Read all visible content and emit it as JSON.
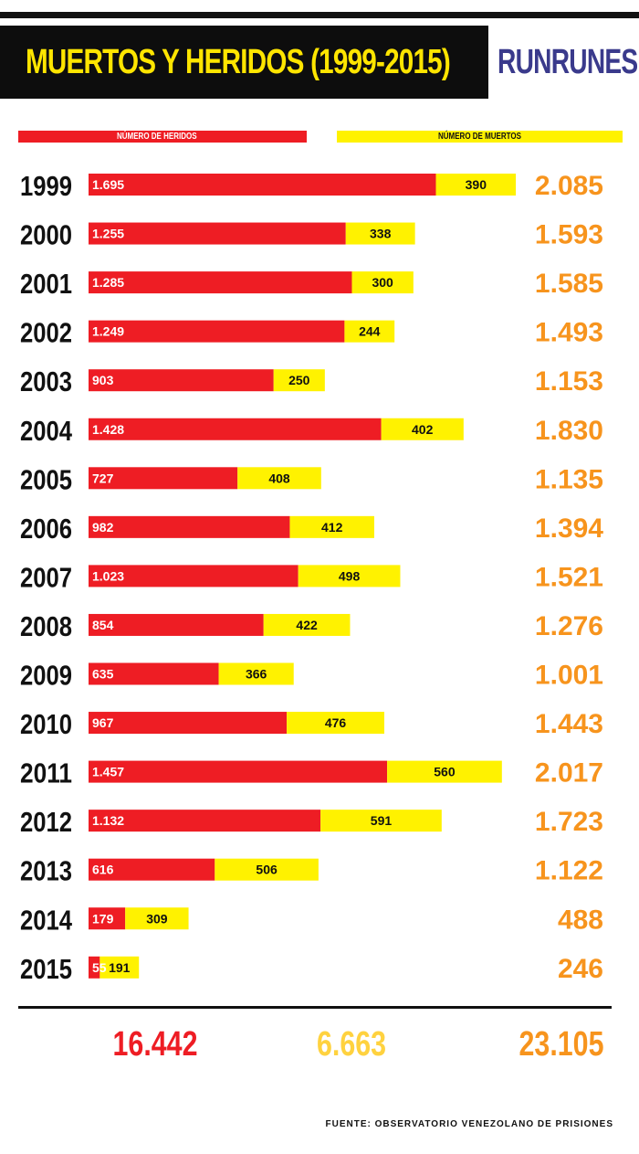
{
  "title": "MUERTOS Y HERIDOS (1999-2015)",
  "brand": "RUNRUNES",
  "legend": {
    "heridos": "NÚMERO DE HERIDOS",
    "muertos": "NÚMERO DE MUERTOS"
  },
  "colors": {
    "heridos": "#ee1d24",
    "muertos": "#fff200",
    "total": "#f7941d",
    "muertos_total": "#ffd23f",
    "brand": "#3a3a8c",
    "title": "#ffe500"
  },
  "chart_data": {
    "type": "bar",
    "orientation": "horizontal",
    "stacked": true,
    "categories": [
      "1999",
      "2000",
      "2001",
      "2002",
      "2003",
      "2004",
      "2005",
      "2006",
      "2007",
      "2008",
      "2009",
      "2010",
      "2011",
      "2012",
      "2013",
      "2014",
      "2015"
    ],
    "series": [
      {
        "name": "NÚMERO DE HERIDOS",
        "values": [
          1695,
          1255,
          1285,
          1249,
          903,
          1428,
          727,
          982,
          1023,
          854,
          635,
          967,
          1457,
          1132,
          616,
          179,
          55
        ],
        "labels": [
          "1.695",
          "1.255",
          "1.285",
          "1.249",
          "903",
          "1.428",
          "727",
          "982",
          "1.023",
          "854",
          "635",
          "967",
          "1.457",
          "1.132",
          "616",
          "179",
          "55"
        ]
      },
      {
        "name": "NÚMERO DE MUERTOS",
        "values": [
          390,
          338,
          300,
          244,
          250,
          402,
          408,
          412,
          498,
          422,
          366,
          476,
          560,
          591,
          506,
          309,
          191
        ],
        "labels": [
          "390",
          "338",
          "300",
          "244",
          "250",
          "402",
          "408",
          "412",
          "498",
          "422",
          "366",
          "476",
          "560",
          "591",
          "506",
          "309",
          "191"
        ]
      }
    ],
    "row_totals": [
      "2.085",
      "1.593",
      "1.585",
      "1.493",
      "1.153",
      "1.830",
      "1.135",
      "1.394",
      "1.521",
      "1.276",
      "1.001",
      "1.443",
      "2.017",
      "1.723",
      "1.122",
      "488",
      "246"
    ],
    "legend_position": "top"
  },
  "totals": {
    "heridos": "16.442",
    "muertos": "6.663",
    "total": "23.105"
  },
  "source": "FUENTE: OBSERVATORIO VENEZOLANO DE PRISIONES"
}
